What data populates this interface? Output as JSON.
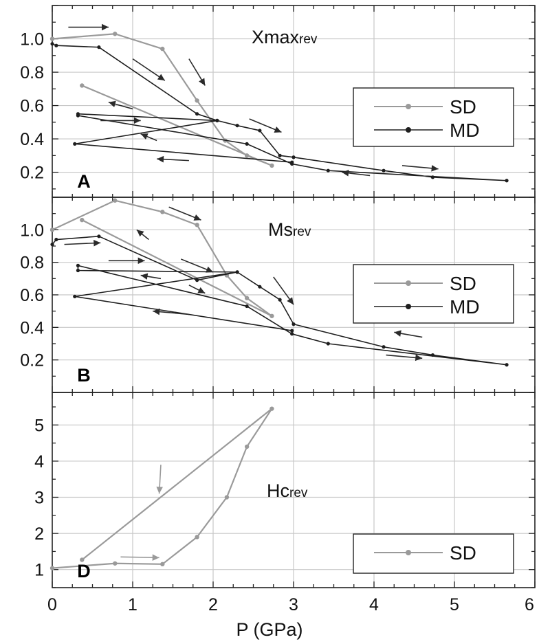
{
  "chart_data": [
    {
      "panel": "A",
      "type": "line",
      "quantity_main": "Xmax",
      "quantity_sub": "rev",
      "xlim": [
        0,
        6
      ],
      "ylim": [
        0.05,
        1.2
      ],
      "yticks": [
        "0.2",
        "0.4",
        "0.6",
        "0.8",
        "1.0"
      ],
      "grid": true,
      "legend_position": "right",
      "series": [
        {
          "name": "SD",
          "color": "#9a9a9a",
          "points": [
            [
              0.0,
              1.0
            ],
            [
              0.78,
              1.03
            ],
            [
              1.37,
              0.94
            ],
            [
              1.8,
              0.63
            ],
            [
              2.15,
              0.39
            ],
            [
              2.42,
              0.3
            ],
            [
              2.73,
              0.24
            ],
            [
              0.37,
              0.72
            ]
          ]
        },
        {
          "name": "MD",
          "color": "#1e1e1e",
          "points": [
            [
              0.0,
              0.97
            ],
            [
              0.05,
              0.96
            ],
            [
              0.58,
              0.95
            ],
            [
              1.8,
              0.55
            ],
            [
              2.05,
              0.51
            ],
            [
              2.3,
              0.48
            ],
            [
              2.58,
              0.45
            ],
            [
              2.83,
              0.3
            ],
            [
              3.0,
              0.29
            ],
            [
              4.12,
              0.21
            ],
            [
              4.73,
              0.17
            ],
            [
              5.65,
              0.15
            ],
            [
              3.43,
              0.21
            ],
            [
              2.98,
              0.25
            ],
            [
              2.42,
              0.37
            ],
            [
              0.32,
              0.54
            ],
            [
              0.32,
              0.55
            ],
            [
              2.05,
              0.51
            ],
            [
              0.28,
              0.37
            ],
            [
              2.98,
              0.26
            ]
          ]
        }
      ],
      "arrows": [
        [
          0.2,
          1.07,
          0.7,
          1.07
        ],
        [
          1.0,
          0.88,
          1.4,
          0.75
        ],
        [
          1.7,
          0.88,
          1.9,
          0.72
        ],
        [
          1.0,
          0.58,
          0.7,
          0.62
        ],
        [
          0.6,
          0.51,
          1.1,
          0.51
        ],
        [
          2.45,
          0.52,
          2.85,
          0.44
        ],
        [
          1.3,
          0.39,
          1.1,
          0.43
        ],
        [
          1.7,
          0.27,
          1.3,
          0.28
        ],
        [
          3.95,
          0.18,
          3.6,
          0.2
        ],
        [
          4.35,
          0.24,
          4.8,
          0.22
        ]
      ]
    },
    {
      "panel": "B",
      "type": "line",
      "quantity_main": "Ms",
      "quantity_sub": "rev",
      "xlim": [
        0,
        6
      ],
      "ylim": [
        0.0,
        1.2
      ],
      "yticks": [
        "0.2",
        "0.4",
        "0.6",
        "0.8",
        "1.0"
      ],
      "grid": true,
      "legend_position": "right",
      "series": [
        {
          "name": "SD",
          "color": "#9a9a9a",
          "points": [
            [
              0.0,
              1.0
            ],
            [
              0.78,
              1.18
            ],
            [
              1.37,
              1.11
            ],
            [
              1.8,
              1.03
            ],
            [
              2.17,
              0.72
            ],
            [
              2.42,
              0.58
            ],
            [
              2.73,
              0.47
            ],
            [
              0.37,
              1.06
            ]
          ]
        },
        {
          "name": "MD",
          "color": "#1e1e1e",
          "points": [
            [
              0.0,
              0.91
            ],
            [
              0.05,
              0.94
            ],
            [
              0.58,
              0.96
            ],
            [
              1.8,
              0.69
            ],
            [
              2.3,
              0.74
            ],
            [
              2.58,
              0.65
            ],
            [
              2.83,
              0.57
            ],
            [
              3.0,
              0.42
            ],
            [
              4.12,
              0.28
            ],
            [
              4.73,
              0.23
            ],
            [
              5.65,
              0.17
            ],
            [
              3.43,
              0.3
            ],
            [
              2.98,
              0.36
            ],
            [
              2.42,
              0.53
            ],
            [
              0.32,
              0.78
            ],
            [
              0.32,
              0.75
            ],
            [
              2.3,
              0.74
            ],
            [
              0.28,
              0.59
            ],
            [
              2.98,
              0.38
            ]
          ]
        }
      ],
      "arrows": [
        [
          0.15,
          0.91,
          0.6,
          0.92
        ],
        [
          1.45,
          1.14,
          1.85,
          1.06
        ],
        [
          1.2,
          0.94,
          1.05,
          1.0
        ],
        [
          0.7,
          0.81,
          1.15,
          0.81
        ],
        [
          1.6,
          0.82,
          2.0,
          0.74
        ],
        [
          2.75,
          0.71,
          3.0,
          0.54
        ],
        [
          1.35,
          0.7,
          1.1,
          0.72
        ],
        [
          1.7,
          0.66,
          1.9,
          0.61
        ],
        [
          1.7,
          0.48,
          1.25,
          0.5
        ],
        [
          4.6,
          0.34,
          4.25,
          0.37
        ],
        [
          4.15,
          0.23,
          4.6,
          0.21
        ]
      ]
    },
    {
      "panel": "D",
      "type": "line",
      "quantity_main": "Hc",
      "quantity_sub": "rev",
      "xlim": [
        0,
        6
      ],
      "ylim": [
        0.5,
        5.9
      ],
      "yticks": [
        "1",
        "2",
        "3",
        "4",
        "5"
      ],
      "grid": true,
      "legend_position": "bottom-right",
      "series": [
        {
          "name": "SD",
          "color": "#9a9a9a",
          "points": [
            [
              0.0,
              1.04
            ],
            [
              0.78,
              1.17
            ],
            [
              1.37,
              1.15
            ],
            [
              1.8,
              1.9
            ],
            [
              2.17,
              3.0
            ],
            [
              2.42,
              4.4
            ],
            [
              2.73,
              5.45
            ],
            [
              0.37,
              1.27
            ]
          ]
        }
      ],
      "arrows": [
        [
          1.35,
          3.9,
          1.33,
          3.1
        ],
        [
          0.85,
          1.35,
          1.33,
          1.33
        ]
      ]
    }
  ],
  "xlabel": "P (GPa)",
  "xticks": [
    "0",
    "1",
    "2",
    "3",
    "4",
    "5",
    "6"
  ],
  "legends": [
    {
      "items": [
        "SD",
        "MD"
      ]
    },
    {
      "items": [
        "SD",
        "MD"
      ]
    },
    {
      "items": [
        "SD"
      ]
    }
  ]
}
